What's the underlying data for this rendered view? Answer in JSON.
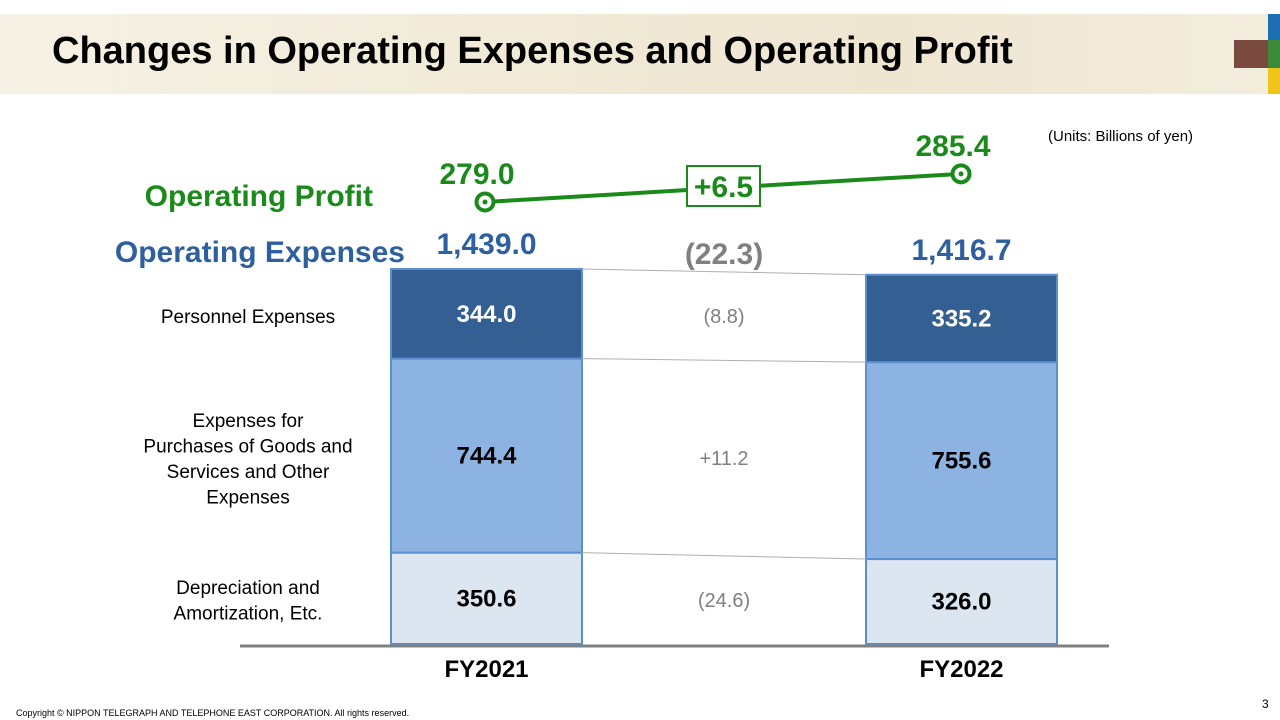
{
  "title": "Changes in Operating Expenses and Operating Profit",
  "units": "(Units:  Billions of yen)",
  "copyright": "Copyright  © NIPPON TELEGRAPH AND TELEPHONE EAST CORPORATION. All rights reserved.",
  "page_number": "3",
  "colors": {
    "profit": "#1a8a1a",
    "expenses_label": "#2e5f9e",
    "personnel": "#345f93",
    "purchases": "#8db3e2",
    "depreciation": "#dce6f1",
    "bar_border": "#5b8fd0",
    "change_text": "#808080",
    "axis": "#808080"
  },
  "chart_data": {
    "type": "bar",
    "stacked": true,
    "categories": [
      "FY2021",
      "FY2022"
    ],
    "series": [
      {
        "name": "Personnel Expenses",
        "values": [
          344.0,
          335.2
        ],
        "labels": [
          "344.0",
          "335.2"
        ],
        "change": "(8.8)"
      },
      {
        "name": "Expenses for Purchases of Goods and Services and Other Expenses",
        "values": [
          744.4,
          755.6
        ],
        "labels": [
          "744.4",
          "755.6"
        ],
        "change": "+11.2"
      },
      {
        "name": "Depreciation and Amortization,  Etc.",
        "values": [
          350.6,
          326.0
        ],
        "labels": [
          "350.6",
          "326.0"
        ],
        "change": "(24.6)"
      }
    ],
    "row_labels": [
      [
        "Personnel Expenses"
      ],
      [
        "Expenses for",
        "Purchases of Goods and",
        "Services and Other",
        "Expenses"
      ],
      [
        "Depreciation and",
        "Amortization,  Etc."
      ]
    ],
    "totals": {
      "label": "Operating Expenses",
      "values": [
        1439.0,
        1416.7
      ],
      "labels": [
        "1,439.0",
        "1,416.7"
      ],
      "change": "(22.3)"
    },
    "operating_profit": {
      "label": "Operating Profit",
      "values": [
        279.0,
        285.4
      ],
      "labels": [
        "279.0",
        "285.4"
      ],
      "change": "+6.5"
    }
  }
}
